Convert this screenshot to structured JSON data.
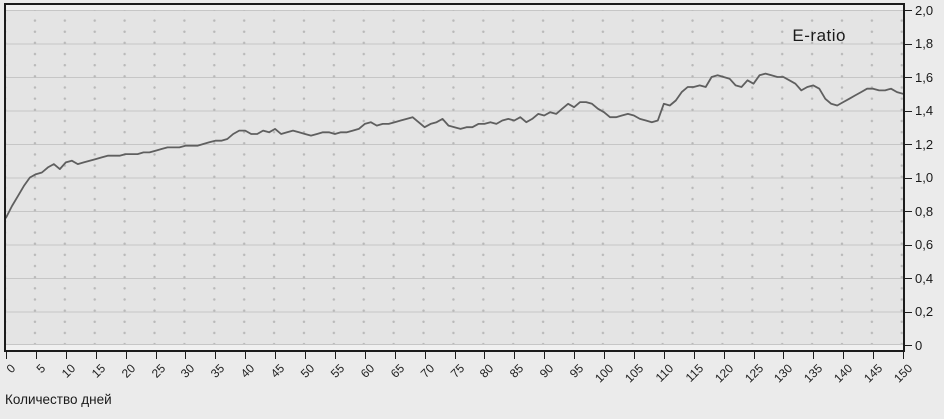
{
  "colors": {
    "page_background": "#ebebeb",
    "plot_margin_background": "#f0f0f0",
    "plot_background": "#e4e4e4",
    "gridline": "#c6c6c6",
    "minor_dot": "#b9b9b9",
    "axis": "#1c1c1c",
    "line": "#5f5f5f",
    "text": "#1a1a1a"
  },
  "chart_data": {
    "type": "line",
    "series_label": "E-ratio",
    "xlabel": "Количество дней",
    "ylabel": "",
    "xlim": [
      0,
      150
    ],
    "ylim": [
      0,
      2.0
    ],
    "x_ticks": [
      0,
      5,
      10,
      15,
      20,
      25,
      30,
      35,
      40,
      45,
      50,
      55,
      60,
      65,
      70,
      75,
      80,
      85,
      90,
      95,
      100,
      105,
      110,
      115,
      120,
      125,
      130,
      135,
      140,
      145,
      150
    ],
    "y_tick_labels": [
      "2,0",
      "1,8",
      "1,6",
      "1,4",
      "1,2",
      "1,0",
      "0,8",
      "0,6",
      "0,4",
      "0,2",
      "0"
    ],
    "y_tick_values": [
      2.0,
      1.8,
      1.6,
      1.4,
      1.2,
      1.0,
      0.8,
      0.6,
      0.4,
      0.2,
      0.0
    ],
    "grid": "solid horizontal every 0.2; dotted minor grid; y axis on right side; x labels rotated 45deg",
    "legend_position": "top-right inside plot (text only)",
    "x": [
      0,
      1,
      2,
      3,
      4,
      5,
      6,
      7,
      8,
      9,
      10,
      11,
      12,
      13,
      14,
      15,
      16,
      17,
      18,
      19,
      20,
      21,
      22,
      23,
      24,
      25,
      26,
      27,
      28,
      29,
      30,
      31,
      32,
      33,
      34,
      35,
      36,
      37,
      38,
      39,
      40,
      41,
      42,
      43,
      44,
      45,
      46,
      47,
      48,
      49,
      50,
      51,
      52,
      53,
      54,
      55,
      56,
      57,
      58,
      59,
      60,
      61,
      62,
      63,
      64,
      65,
      66,
      67,
      68,
      69,
      70,
      71,
      72,
      73,
      74,
      75,
      76,
      77,
      78,
      79,
      80,
      81,
      82,
      83,
      84,
      85,
      86,
      87,
      88,
      89,
      90,
      91,
      92,
      93,
      94,
      95,
      96,
      97,
      98,
      99,
      100,
      101,
      102,
      103,
      104,
      105,
      106,
      107,
      108,
      109,
      110,
      111,
      112,
      113,
      114,
      115,
      116,
      117,
      118,
      119,
      120,
      121,
      122,
      123,
      124,
      125,
      126,
      127,
      128,
      129,
      130,
      131,
      132,
      133,
      134,
      135,
      136,
      137,
      138,
      139,
      140,
      141,
      142,
      143,
      144,
      145,
      146,
      147,
      148,
      149,
      150
    ],
    "values": [
      0.76,
      0.83,
      0.89,
      0.95,
      1.0,
      1.02,
      1.03,
      1.06,
      1.08,
      1.05,
      1.09,
      1.1,
      1.08,
      1.09,
      1.1,
      1.11,
      1.12,
      1.13,
      1.13,
      1.13,
      1.14,
      1.14,
      1.14,
      1.15,
      1.15,
      1.16,
      1.17,
      1.18,
      1.18,
      1.18,
      1.19,
      1.19,
      1.19,
      1.2,
      1.21,
      1.22,
      1.22,
      1.23,
      1.26,
      1.28,
      1.28,
      1.26,
      1.26,
      1.28,
      1.27,
      1.29,
      1.26,
      1.27,
      1.28,
      1.27,
      1.26,
      1.25,
      1.26,
      1.27,
      1.27,
      1.26,
      1.27,
      1.27,
      1.28,
      1.29,
      1.32,
      1.33,
      1.31,
      1.32,
      1.32,
      1.33,
      1.34,
      1.35,
      1.36,
      1.33,
      1.3,
      1.32,
      1.33,
      1.35,
      1.31,
      1.3,
      1.29,
      1.3,
      1.3,
      1.32,
      1.32,
      1.33,
      1.32,
      1.34,
      1.35,
      1.34,
      1.36,
      1.33,
      1.35,
      1.38,
      1.37,
      1.39,
      1.38,
      1.41,
      1.44,
      1.42,
      1.45,
      1.45,
      1.44,
      1.41,
      1.39,
      1.36,
      1.36,
      1.37,
      1.38,
      1.37,
      1.35,
      1.34,
      1.33,
      1.34,
      1.44,
      1.43,
      1.46,
      1.51,
      1.54,
      1.54,
      1.55,
      1.54,
      1.6,
      1.61,
      1.6,
      1.59,
      1.55,
      1.54,
      1.58,
      1.56,
      1.61,
      1.62,
      1.61,
      1.6,
      1.6,
      1.58,
      1.56,
      1.52,
      1.54,
      1.55,
      1.53,
      1.47,
      1.44,
      1.43,
      1.45,
      1.47,
      1.49,
      1.51,
      1.53,
      1.53,
      1.52,
      1.52,
      1.53,
      1.51,
      1.5
    ]
  }
}
